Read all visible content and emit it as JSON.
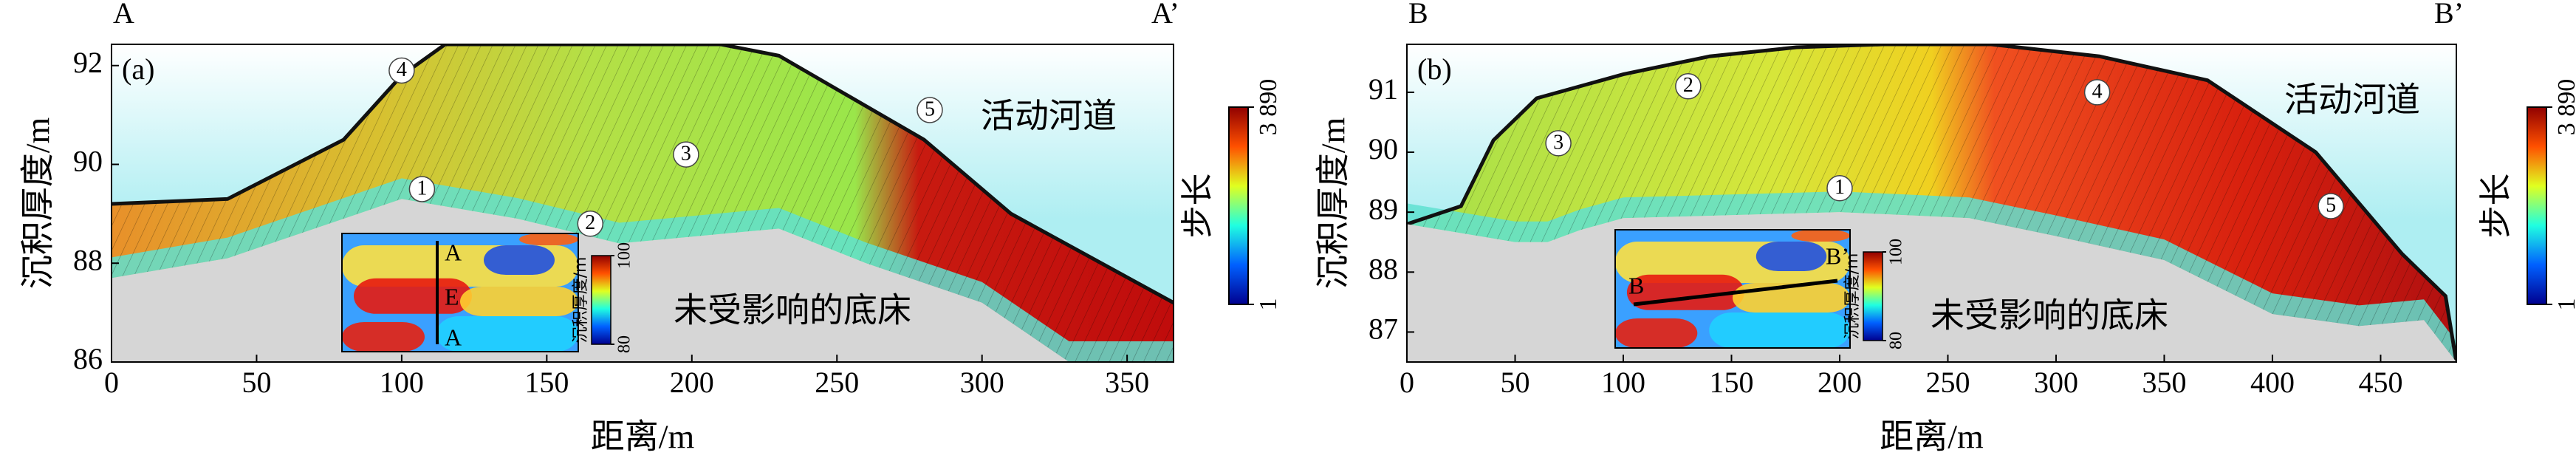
{
  "chart_data": [
    {
      "type": "section",
      "panel": "(a)",
      "left_label": "A",
      "right_label": "A’",
      "xlabel": "距离/m",
      "ylabel": "沉积厚度/m",
      "xlim": [
        0,
        366
      ],
      "xticks": [
        0,
        50,
        100,
        150,
        200,
        250,
        300,
        350
      ],
      "ylim": [
        86,
        92.43
      ],
      "yticks": [
        86,
        88,
        90,
        92
      ],
      "surface": {
        "x": [
          0,
          40,
          80,
          100,
          115,
          210,
          230,
          280,
          310,
          366
        ],
        "values": [
          89.2,
          89.3,
          90.5,
          91.8,
          92.43,
          92.43,
          92.2,
          90.5,
          89.0,
          87.2
        ]
      },
      "bed": {
        "x": [
          0,
          40,
          80,
          100,
          140,
          175,
          230,
          260,
          300,
          330,
          366
        ],
        "values": [
          87.7,
          88.1,
          88.9,
          89.3,
          88.9,
          88.4,
          88.7,
          88.0,
          87.2,
          86.0,
          86.0
        ]
      },
      "layer_labels": [
        "1",
        "2",
        "3",
        "4",
        "5"
      ],
      "annotations": [
        "活动河道",
        "未受影响的底床"
      ],
      "colorbar": {
        "label": "步长",
        "lim": [
          1,
          3890
        ],
        "ticks": [
          1,
          {
            "value": 3890,
            "label": "3 890"
          }
        ]
      },
      "inset": {
        "letters": [
          "A",
          "E",
          "A"
        ],
        "colorbar_label": "沉积厚度/m",
        "lim": [
          80,
          100
        ],
        "ticks": [
          80,
          100
        ]
      }
    },
    {
      "type": "section",
      "panel": "(b)",
      "left_label": "B",
      "right_label": "B’",
      "xlabel": "距离/m",
      "ylabel": "沉积厚度/m",
      "xlim": [
        0,
        485
      ],
      "xticks": [
        0,
        50,
        100,
        150,
        200,
        250,
        300,
        350,
        400,
        450
      ],
      "ylim": [
        86.5,
        91.8
      ],
      "yticks": [
        87,
        88,
        89,
        90,
        91
      ],
      "surface": {
        "x": [
          0,
          25,
          40,
          60,
          100,
          140,
          180,
          220,
          270,
          320,
          370,
          420,
          460,
          480,
          485
        ],
        "values": [
          88.8,
          89.1,
          90.2,
          90.9,
          91.3,
          91.6,
          91.75,
          91.8,
          91.8,
          91.6,
          91.2,
          90.0,
          88.3,
          87.6,
          86.5
        ]
      },
      "bed": {
        "x": [
          0,
          50,
          65,
          80,
          100,
          200,
          260,
          300,
          350,
          400,
          440,
          470,
          485
        ],
        "values": [
          88.8,
          88.5,
          88.5,
          88.7,
          88.9,
          89.0,
          88.9,
          88.6,
          88.2,
          87.3,
          87.1,
          87.2,
          86.5
        ]
      },
      "layer_labels": [
        "1",
        "2",
        "3",
        "4",
        "5"
      ],
      "annotations": [
        "活动河道",
        "未受影响的底床"
      ],
      "colorbar": {
        "label": "步长",
        "lim": [
          1,
          3890
        ],
        "ticks": [
          1,
          {
            "value": 3890,
            "label": "3 890"
          }
        ]
      },
      "inset": {
        "letters": [
          "B",
          "B’"
        ],
        "colorbar_label": "沉积厚度/m",
        "lim": [
          80,
          100
        ],
        "ticks": [
          80,
          100
        ]
      }
    }
  ]
}
